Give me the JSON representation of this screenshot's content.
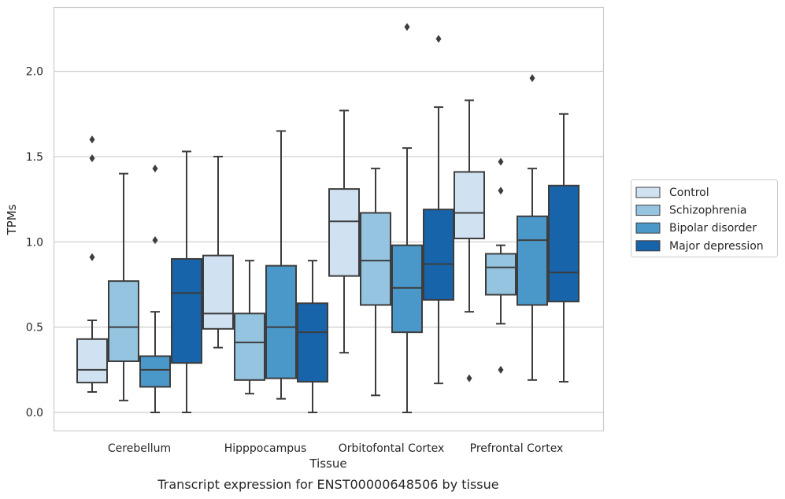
{
  "chart_data": {
    "type": "box",
    "xlabel": "Tissue",
    "ylabel": "TPMs",
    "ylim": [
      -0.11,
      2.37
    ],
    "yticks": [
      "0.0",
      "0.5",
      "1.0",
      "1.5",
      "2.0"
    ],
    "grid": "horizontal",
    "legend_position": "right",
    "categories": [
      "Cerebellum",
      "Hipppocampus",
      "Orbitofontal Cortex",
      "Prefrontal Cortex"
    ],
    "series": [
      {
        "name": "Control",
        "color": "#d0e1f2",
        "boxes": [
          {
            "whislo": 0.12,
            "q1": 0.175,
            "med": 0.25,
            "q3": 0.43,
            "whishi": 0.54,
            "fliers": [
              0.91,
              1.49,
              1.6
            ]
          },
          {
            "whislo": 0.38,
            "q1": 0.49,
            "med": 0.58,
            "q3": 0.92,
            "whishi": 1.5,
            "fliers": []
          },
          {
            "whislo": 0.35,
            "q1": 0.8,
            "med": 1.12,
            "q3": 1.31,
            "whishi": 1.77,
            "fliers": []
          },
          {
            "whislo": 0.59,
            "q1": 1.02,
            "med": 1.17,
            "q3": 1.41,
            "whishi": 1.83,
            "fliers": [
              0.2
            ]
          }
        ]
      },
      {
        "name": "Schizophrenia",
        "color": "#94c4df",
        "boxes": [
          {
            "whislo": 0.07,
            "q1": 0.3,
            "med": 0.5,
            "q3": 0.77,
            "whishi": 1.4,
            "fliers": []
          },
          {
            "whislo": 0.11,
            "q1": 0.19,
            "med": 0.41,
            "q3": 0.58,
            "whishi": 0.89,
            "fliers": []
          },
          {
            "whislo": 0.1,
            "q1": 0.63,
            "med": 0.89,
            "q3": 1.17,
            "whishi": 1.43,
            "fliers": []
          },
          {
            "whislo": 0.52,
            "q1": 0.69,
            "med": 0.85,
            "q3": 0.93,
            "whishi": 0.98,
            "fliers": [
              0.25,
              1.3,
              1.47
            ]
          }
        ]
      },
      {
        "name": "Bipolar disorder",
        "color": "#4a98c9",
        "boxes": [
          {
            "whislo": 0.0,
            "q1": 0.15,
            "med": 0.25,
            "q3": 0.33,
            "whishi": 0.59,
            "fliers": [
              1.01,
              1.43
            ]
          },
          {
            "whislo": 0.08,
            "q1": 0.2,
            "med": 0.5,
            "q3": 0.86,
            "whishi": 1.65,
            "fliers": []
          },
          {
            "whislo": 0.0,
            "q1": 0.47,
            "med": 0.73,
            "q3": 0.98,
            "whishi": 1.55,
            "fliers": [
              2.26
            ]
          },
          {
            "whislo": 0.19,
            "q1": 0.63,
            "med": 1.01,
            "q3": 1.15,
            "whishi": 1.43,
            "fliers": [
              1.96
            ]
          }
        ]
      },
      {
        "name": "Major depression",
        "color": "#1764ab",
        "boxes": [
          {
            "whislo": 0.0,
            "q1": 0.29,
            "med": 0.7,
            "q3": 0.9,
            "whishi": 1.53,
            "fliers": []
          },
          {
            "whislo": 0.0,
            "q1": 0.18,
            "med": 0.47,
            "q3": 0.64,
            "whishi": 0.89,
            "fliers": []
          },
          {
            "whislo": 0.17,
            "q1": 0.66,
            "med": 0.87,
            "q3": 1.19,
            "whishi": 1.79,
            "fliers": [
              2.19
            ]
          },
          {
            "whislo": 0.18,
            "q1": 0.65,
            "med": 0.82,
            "q3": 1.33,
            "whishi": 1.75,
            "fliers": []
          }
        ]
      }
    ]
  },
  "caption": "Transcript expression for ENST00000648506 by tissue",
  "colors": {
    "grid": "#cccccc",
    "frame": "#cccccc",
    "line": "#3d3d3d"
  }
}
